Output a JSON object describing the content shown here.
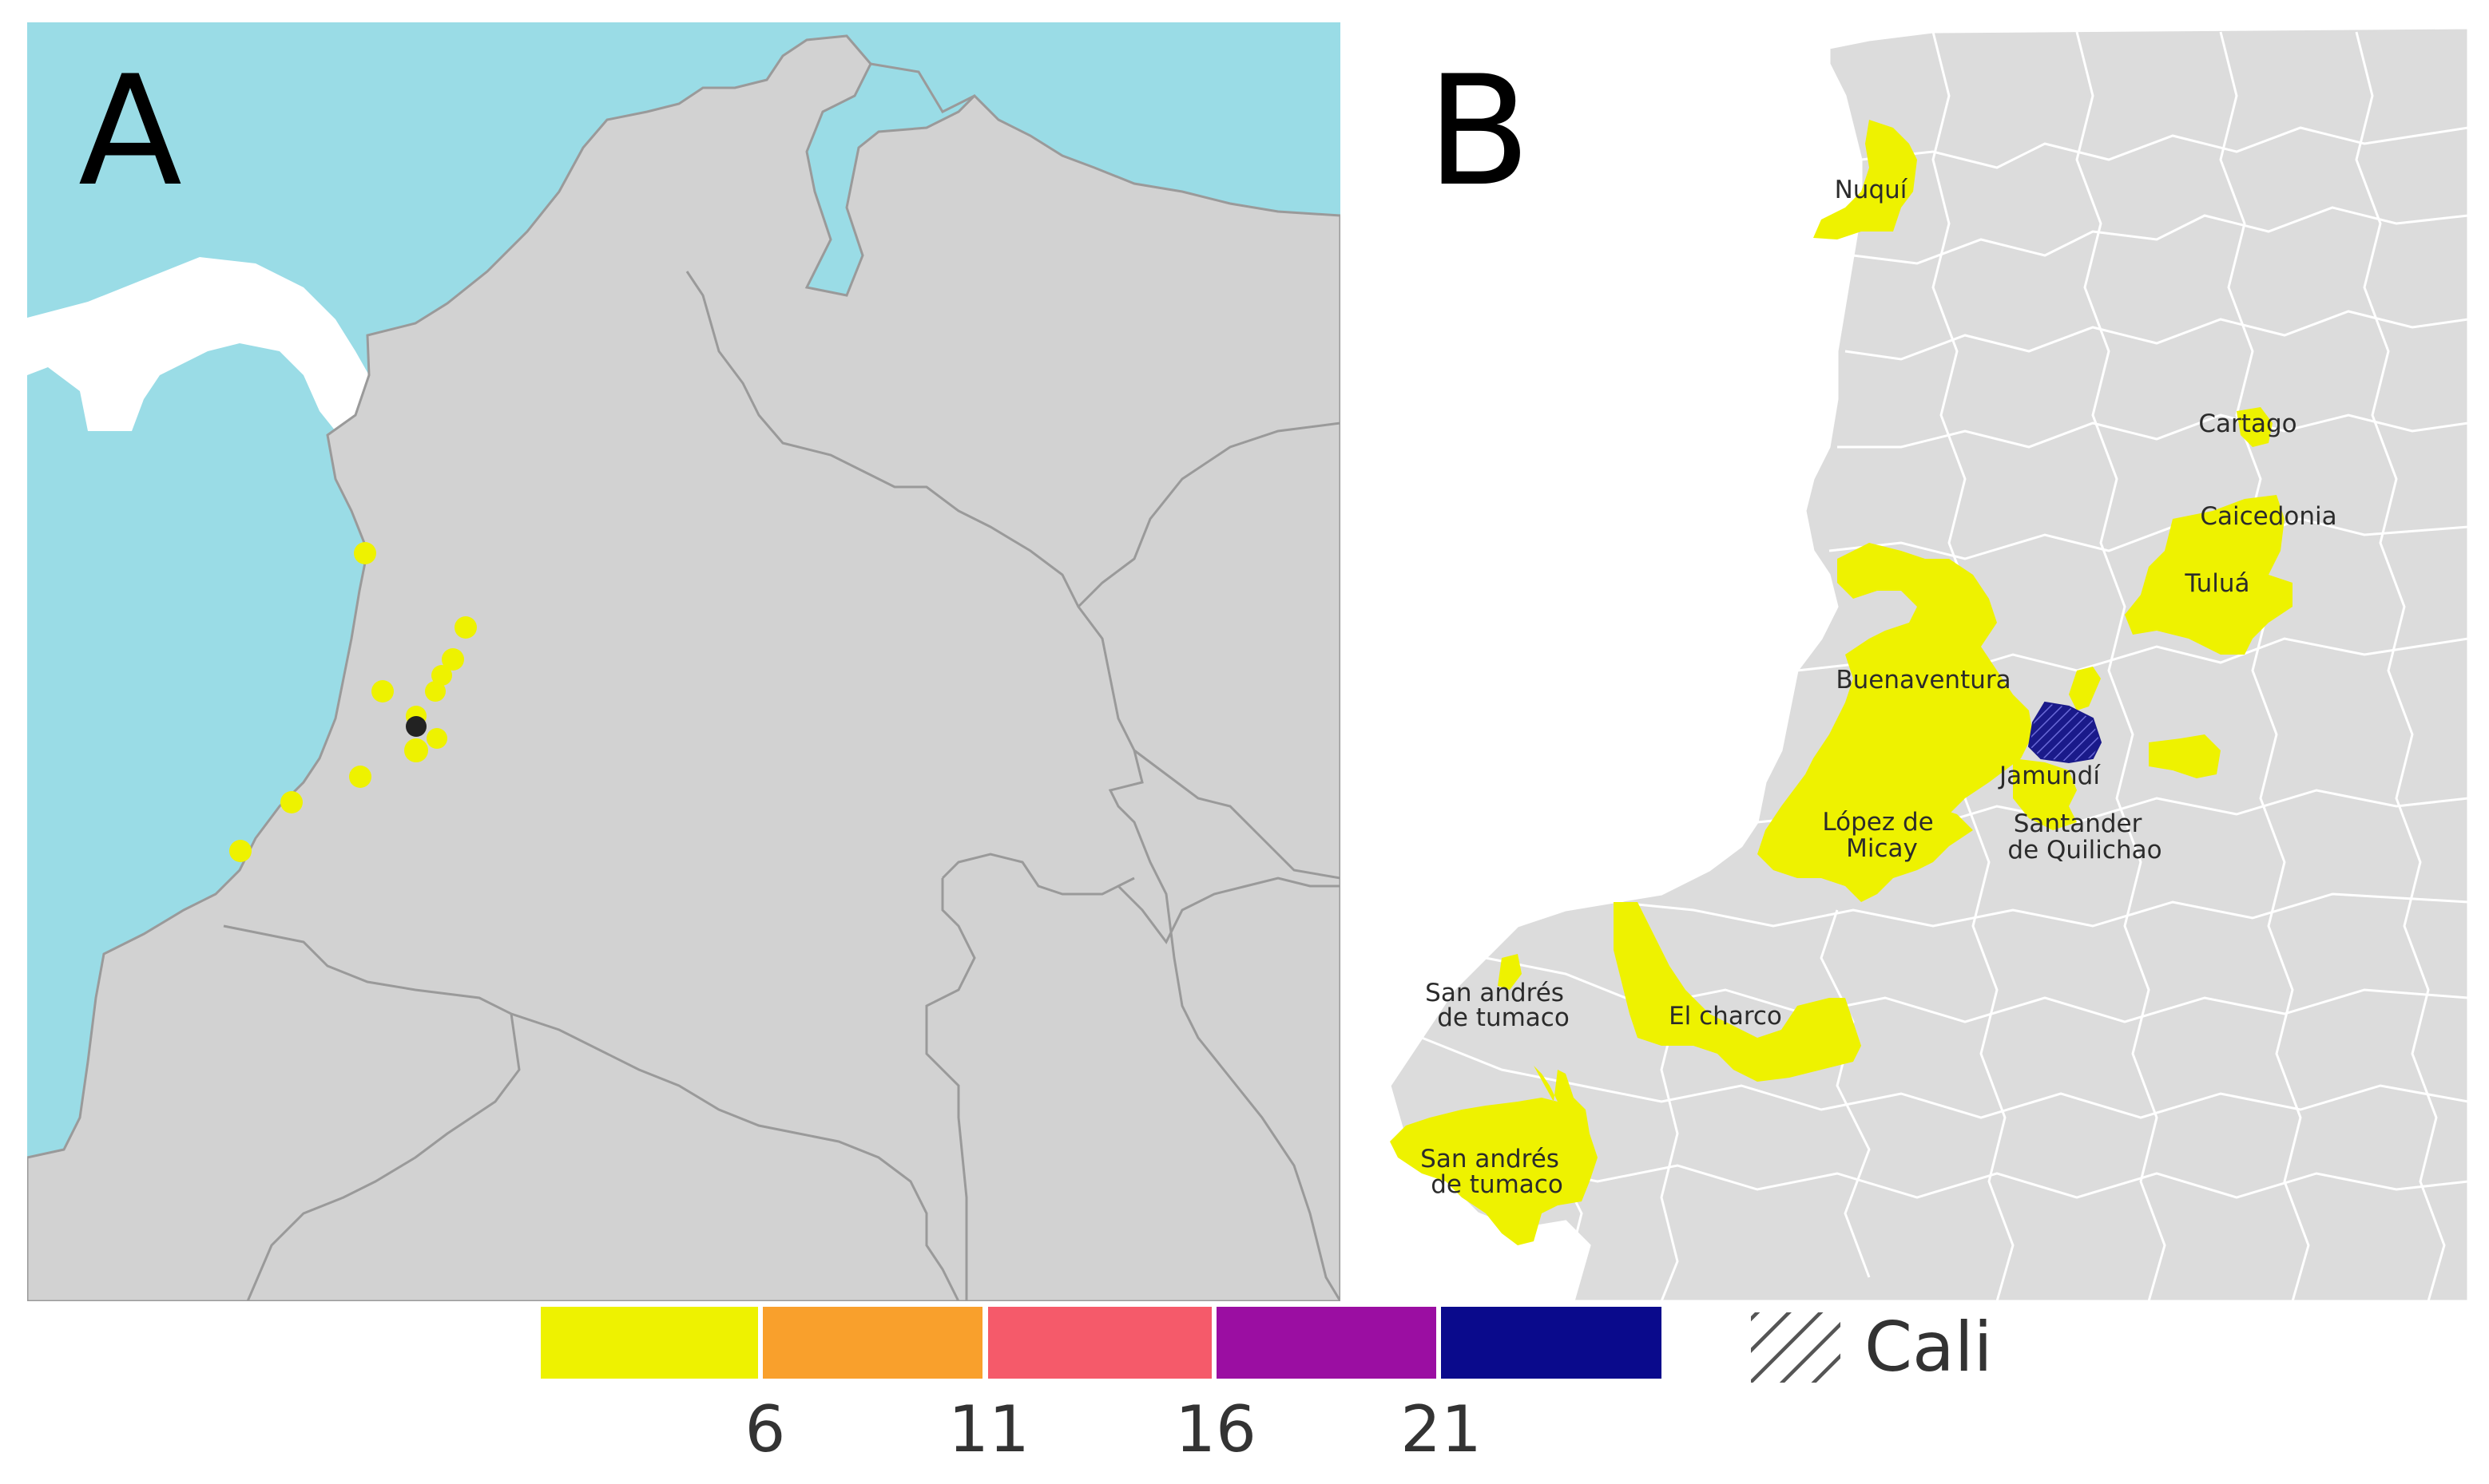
{
  "panels": {
    "a": {
      "letter": "A"
    },
    "b": {
      "letter": "B"
    }
  },
  "places": [
    {
      "key": "nuqui",
      "lines": [
        "Nuquí"
      ]
    },
    {
      "key": "cartago",
      "lines": [
        "Cartago"
      ]
    },
    {
      "key": "caicedonia",
      "lines": [
        "Caicedonia"
      ]
    },
    {
      "key": "tulua",
      "lines": [
        "Tuluá"
      ]
    },
    {
      "key": "buenaventura",
      "lines": [
        "Buenaventura"
      ]
    },
    {
      "key": "jamundi",
      "lines": [
        "Jamundí"
      ]
    },
    {
      "key": "lopez",
      "lines": [
        "López de",
        "Micay"
      ]
    },
    {
      "key": "santander",
      "lines": [
        "Santander",
        "de Quilichao"
      ]
    },
    {
      "key": "sanandres1",
      "lines": [
        "San andrés",
        "de tumaco"
      ]
    },
    {
      "key": "elcharco",
      "lines": [
        "El charco"
      ]
    },
    {
      "key": "sanandres2",
      "lines": [
        "San andrés",
        "de tumaco"
      ]
    }
  ],
  "legend": {
    "bins": [
      {
        "color": "#eef200",
        "label": ""
      },
      {
        "color": "#f9a02c",
        "label": "6"
      },
      {
        "color": "#f55a6a",
        "label": "11"
      },
      {
        "color": "#9b0ea2",
        "label": "16"
      },
      {
        "color": "#0a0a8c",
        "label": "21"
      }
    ],
    "hatch_label": "Cali"
  },
  "colors": {
    "sea": "#9adce6",
    "land": "#d2d2d2",
    "land_b": "#dcdcdc",
    "case": "#eef200",
    "max": "#1a1a8a"
  }
}
